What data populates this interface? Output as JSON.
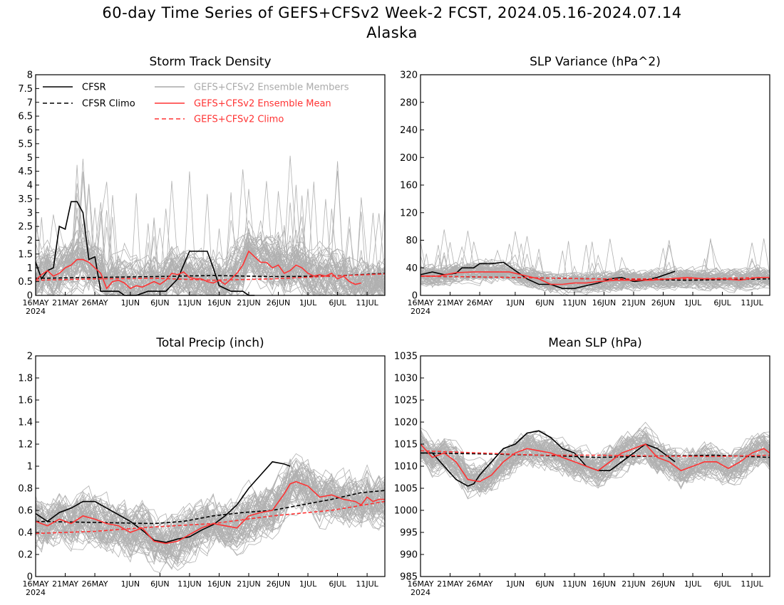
{
  "page": {
    "title_line1": "60-day Time Series of GEFS+CFSv2 Week-2 FCST, 2024.05.16-2024.07.14",
    "title_line2": "Alaska"
  },
  "colors": {
    "cfsr": "#000000",
    "members": "#a9a9a9",
    "ensemble_mean": "#ff3333",
    "frame": "#000000"
  },
  "legend": {
    "cfsr": "CFSR",
    "cfsr_climo": "CFSR Climo",
    "members": "GEFS+CFSv2 Ensemble Members",
    "mean": "GEFS+CFSv2 Ensemble Mean",
    "climo": "GEFS+CFSv2 Climo"
  },
  "chart_data": [
    {
      "id": "storm-track-density",
      "type": "line",
      "title": "Storm Track Density",
      "x_tick_labels": [
        "16MAY",
        "21MAY",
        "26MAY",
        "1JUN",
        "6JUN",
        "11JUN",
        "16JUN",
        "21JUN",
        "26JUN",
        "1JUL",
        "6JUL",
        "11JUL"
      ],
      "x_year_label": "2024",
      "x_range_days": [
        0,
        59
      ],
      "ylim": [
        0,
        8
      ],
      "y_ticks": [
        "0",
        "0.5",
        "1",
        "1.5",
        "2",
        "2.5",
        "3",
        "3.5",
        "4",
        "4.5",
        "5",
        "5.5",
        "6",
        "6.5",
        "7",
        "7.5",
        "8"
      ],
      "legend_position": "top",
      "series": [
        {
          "name": "CFSR",
          "color": "#000000",
          "dash": false,
          "x": [
            0,
            1,
            2,
            3,
            4,
            5,
            6,
            7,
            8,
            9,
            10,
            11,
            12,
            13,
            14,
            15,
            17,
            19,
            20,
            22,
            24,
            26,
            28,
            29,
            30,
            31,
            33,
            34,
            35,
            36,
            37,
            39,
            40,
            41,
            42
          ],
          "y": [
            1.2,
            0.6,
            0.9,
            1.0,
            2.5,
            2.4,
            3.4,
            3.4,
            3.0,
            1.3,
            1.4,
            0.15,
            0.15,
            0.15,
            0.15,
            0.0,
            0.0,
            0.15,
            0.15,
            0.15,
            0.6,
            1.6,
            1.6,
            1.6,
            1.0,
            0.35,
            0.15,
            0.15,
            0.15,
            0.0,
            0.0,
            null,
            null,
            null,
            null
          ]
        },
        {
          "name": "CFSR Climo",
          "color": "#000000",
          "dash": true,
          "x": [
            0,
            10,
            20,
            30,
            40,
            50,
            59
          ],
          "y": [
            0.62,
            0.65,
            0.68,
            0.72,
            0.68,
            0.7,
            0.8
          ]
        },
        {
          "name": "GEFS+CFSv2 Ensemble Mean",
          "color": "#ff3333",
          "dash": false,
          "x": [
            0,
            1,
            2,
            3,
            4,
            5,
            6,
            7,
            8,
            9,
            10,
            11,
            12,
            13,
            14,
            15,
            16,
            17,
            18,
            19,
            20,
            21,
            22,
            23,
            24,
            25,
            26,
            27,
            28,
            29,
            30,
            31,
            32,
            33,
            34,
            35,
            36,
            37,
            38,
            39,
            40,
            41,
            42,
            43,
            44,
            45,
            46,
            47,
            48,
            49,
            50,
            51,
            52,
            53,
            54,
            55,
            56,
            57,
            58,
            59
          ],
          "y": [
            0.55,
            0.75,
            0.9,
            0.7,
            0.8,
            1.0,
            1.1,
            1.3,
            1.3,
            1.2,
            1.0,
            0.8,
            0.25,
            0.5,
            0.55,
            0.45,
            0.25,
            0.35,
            0.3,
            0.4,
            0.5,
            0.4,
            0.55,
            0.8,
            0.75,
            0.85,
            0.65,
            0.6,
            0.6,
            0.5,
            0.45,
            0.55,
            0.4,
            0.6,
            0.8,
            1.1,
            1.6,
            1.4,
            1.2,
            1.2,
            1.0,
            1.1,
            0.8,
            0.9,
            1.1,
            1.0,
            0.8,
            0.7,
            0.75,
            0.7,
            0.8,
            0.6,
            0.7,
            0.5,
            0.4,
            0.45,
            null,
            null,
            null,
            null
          ]
        },
        {
          "name": "GEFS+CFSv2 Climo",
          "color": "#ff3333",
          "dash": true,
          "x": [
            0,
            10,
            20,
            30,
            40,
            50,
            59
          ],
          "y": [
            0.55,
            0.6,
            0.62,
            0.55,
            0.6,
            0.7,
            0.78
          ]
        }
      ]
    },
    {
      "id": "slp-variance",
      "type": "line",
      "title": "SLP Variance (hPa^2)",
      "x_tick_labels": [
        "16MAY",
        "21MAY",
        "26MAY",
        "1JUN",
        "6JUN",
        "11JUN",
        "16JUN",
        "21JUN",
        "26JUN",
        "1JUL",
        "6JUL",
        "11JUL"
      ],
      "x_year_label": "2024",
      "x_range_days": [
        0,
        59
      ],
      "ylim": [
        0,
        320
      ],
      "y_ticks": [
        "0",
        "40",
        "80",
        "120",
        "160",
        "200",
        "240",
        "280",
        "320"
      ],
      "series": [
        {
          "name": "CFSR",
          "color": "#000000",
          "dash": false,
          "x": [
            0,
            2,
            4,
            6,
            7,
            9,
            10,
            12,
            14,
            16,
            18,
            20,
            22,
            24,
            26,
            28,
            30,
            32,
            34,
            36,
            38,
            40,
            42,
            43
          ],
          "y": [
            30,
            34,
            30,
            32,
            40,
            40,
            46,
            46,
            48,
            36,
            24,
            16,
            16,
            10,
            10,
            14,
            18,
            24,
            26,
            20,
            22,
            26,
            32,
            35
          ]
        },
        {
          "name": "CFSR Climo",
          "color": "#000000",
          "dash": true,
          "x": [
            0,
            15,
            30,
            45,
            59
          ],
          "y": [
            28,
            26,
            24,
            22,
            24
          ]
        },
        {
          "name": "GEFS+CFSv2 Ensemble Mean",
          "color": "#ff3333",
          "dash": false,
          "x": [
            0,
            3,
            6,
            9,
            12,
            15,
            18,
            20,
            22,
            24,
            26,
            28,
            30,
            33,
            36,
            39,
            42,
            45,
            48,
            51,
            54,
            57,
            59
          ],
          "y": [
            28,
            28,
            33,
            34,
            34,
            34,
            28,
            24,
            16,
            16,
            18,
            18,
            20,
            22,
            22,
            22,
            24,
            26,
            24,
            24,
            22,
            26,
            26
          ]
        },
        {
          "name": "GEFS+CFSv2 Climo",
          "color": "#ff3333",
          "dash": true,
          "x": [
            0,
            15,
            30,
            45,
            59
          ],
          "y": [
            28,
            26,
            24,
            24,
            26
          ]
        }
      ]
    },
    {
      "id": "total-precip",
      "type": "line",
      "title": "Total Precip (inch)",
      "x_tick_labels": [
        "16MAY",
        "21MAY",
        "26MAY",
        "1JUN",
        "6JUN",
        "11JUN",
        "16JUN",
        "21JUN",
        "26JUN",
        "1JUL",
        "6JUL",
        "11JUL"
      ],
      "x_year_label": "2024",
      "x_range_days": [
        0,
        59
      ],
      "ylim": [
        0,
        2
      ],
      "y_ticks": [
        "0",
        "0.2",
        "0.4",
        "0.6",
        "0.8",
        "1",
        "1.2",
        "1.4",
        "1.6",
        "1.8",
        "2"
      ],
      "series": [
        {
          "name": "CFSR",
          "color": "#000000",
          "dash": false,
          "x": [
            0,
            2,
            4,
            6,
            8,
            10,
            12,
            14,
            16,
            18,
            20,
            22,
            24,
            26,
            28,
            30,
            32,
            34,
            36,
            38,
            40,
            42,
            43
          ],
          "y": [
            0.57,
            0.5,
            0.58,
            0.62,
            0.68,
            0.68,
            0.62,
            0.56,
            0.5,
            0.42,
            0.33,
            0.31,
            0.34,
            0.36,
            0.42,
            0.47,
            0.55,
            0.65,
            0.8,
            0.92,
            1.04,
            1.02,
            1.0
          ]
        },
        {
          "name": "CFSR Climo",
          "color": "#000000",
          "dash": true,
          "x": [
            0,
            10,
            20,
            25,
            30,
            35,
            40,
            45,
            50,
            55,
            59
          ],
          "y": [
            0.5,
            0.49,
            0.48,
            0.5,
            0.55,
            0.58,
            0.6,
            0.65,
            0.7,
            0.76,
            0.78
          ]
        },
        {
          "name": "GEFS+CFSv2 Ensemble Mean",
          "color": "#ff3333",
          "dash": false,
          "x": [
            0,
            2,
            4,
            6,
            8,
            10,
            12,
            14,
            16,
            18,
            20,
            22,
            24,
            26,
            28,
            30,
            32,
            34,
            36,
            38,
            40,
            42,
            43,
            44,
            46,
            48,
            50,
            52,
            54,
            55,
            56,
            57,
            58,
            59
          ],
          "y": [
            0.5,
            0.46,
            0.52,
            0.48,
            0.55,
            0.52,
            0.48,
            0.46,
            0.4,
            0.44,
            0.32,
            0.3,
            0.32,
            0.38,
            0.44,
            0.48,
            0.46,
            0.44,
            0.55,
            0.58,
            0.6,
            0.75,
            0.84,
            0.86,
            0.82,
            0.72,
            0.74,
            0.7,
            0.68,
            0.65,
            0.72,
            0.68,
            0.7,
            0.7
          ]
        },
        {
          "name": "GEFS+CFSv2 Climo",
          "color": "#ff3333",
          "dash": true,
          "x": [
            0,
            10,
            20,
            30,
            40,
            50,
            59
          ],
          "y": [
            0.39,
            0.41,
            0.45,
            0.48,
            0.55,
            0.6,
            0.68
          ]
        }
      ]
    },
    {
      "id": "mean-slp",
      "type": "line",
      "title": "Mean SLP (hPa)",
      "x_tick_labels": [
        "16MAY",
        "21MAY",
        "26MAY",
        "1JUN",
        "6JUN",
        "11JUN",
        "16JUN",
        "21JUN",
        "26JUN",
        "1JUL",
        "6JUL",
        "11JUL"
      ],
      "x_year_label": "2024",
      "x_range_days": [
        0,
        59
      ],
      "ylim": [
        985,
        1035
      ],
      "y_ticks": [
        "985",
        "990",
        "995",
        "1000",
        "1005",
        "1010",
        "1015",
        "1020",
        "1025",
        "1030",
        "1035"
      ],
      "series": [
        {
          "name": "CFSR",
          "color": "#000000",
          "dash": false,
          "x": [
            0,
            2,
            4,
            6,
            8,
            9,
            10,
            12,
            14,
            16,
            18,
            20,
            22,
            24,
            26,
            28,
            30,
            32,
            34,
            36,
            38,
            40,
            42,
            43
          ],
          "y": [
            1013,
            1013,
            1010,
            1007,
            1005.5,
            1006,
            1008,
            1011,
            1014,
            1015,
            1017.5,
            1018,
            1016.5,
            1014,
            1013,
            1010,
            1009,
            1009,
            1011,
            1013,
            1015,
            1014,
            1012,
            1011
          ]
        },
        {
          "name": "CFSR Climo",
          "color": "#000000",
          "dash": true,
          "x": [
            0,
            10,
            20,
            30,
            40,
            50,
            59
          ],
          "y": [
            1013,
            1012.8,
            1012.5,
            1012,
            1012.3,
            1012.5,
            1012
          ]
        },
        {
          "name": "GEFS+CFSv2 Ensemble Mean",
          "color": "#ff3333",
          "dash": false,
          "x": [
            0,
            2,
            4,
            6,
            8,
            10,
            12,
            14,
            16,
            18,
            20,
            22,
            24,
            26,
            28,
            30,
            32,
            34,
            36,
            38,
            40,
            42,
            44,
            46,
            48,
            50,
            52,
            54,
            56,
            58,
            59
          ],
          "y": [
            1015,
            1012,
            1013,
            1011,
            1007,
            1006.5,
            1008,
            1011,
            1013,
            1014,
            1013.5,
            1013,
            1012,
            1011,
            1010,
            1009,
            1011,
            1013,
            1014,
            1015,
            1012,
            1011,
            1009,
            1010,
            1011,
            1011,
            1009.5,
            1011,
            1013,
            1014,
            1013
          ]
        },
        {
          "name": "GEFS+CFSv2 Climo",
          "color": "#ff3333",
          "dash": true,
          "x": [
            0,
            10,
            20,
            30,
            40,
            50,
            59
          ],
          "y": [
            1013.5,
            1013,
            1012.5,
            1012.5,
            1012.3,
            1012.2,
            1012.5
          ]
        }
      ]
    }
  ]
}
